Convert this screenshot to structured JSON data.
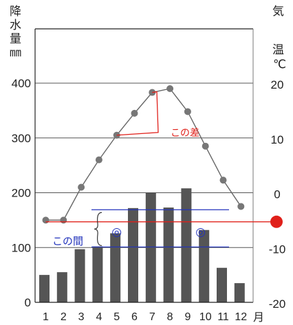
{
  "chart_data": {
    "type": "bar+line",
    "categories": [
      "1",
      "2",
      "3",
      "4",
      "5",
      "6",
      "7",
      "8",
      "9",
      "10",
      "11",
      "12"
    ],
    "month_suffix": "月",
    "precipitation": {
      "values": [
        50,
        55,
        97,
        102,
        126,
        172,
        200,
        173,
        208,
        132,
        63,
        35
      ]
    },
    "temperature": {
      "values": [
        -5,
        -5,
        1,
        6,
        10.5,
        14.5,
        18.3,
        19,
        14.8,
        8.5,
        2.3,
        -2.5
      ]
    },
    "left_axis": {
      "label_chars": [
        "降",
        "水",
        "量",
        "㎜"
      ],
      "ylim": [
        0,
        400
      ],
      "ticks": [
        "0",
        "100",
        "200",
        "300",
        "400"
      ]
    },
    "right_axis": {
      "label_chars": [
        "気",
        "温",
        "℃"
      ],
      "ylim": [
        -20,
        20
      ],
      "ticks": [
        "-20",
        "-10",
        "0",
        "10",
        "20"
      ]
    },
    "annotations": {
      "difference_label": "この差",
      "range_label": "この間",
      "marker_symbol": "◎",
      "band_upper": 169,
      "band_lower": 101,
      "reference_temperature": -5.3,
      "colors": {
        "red": "#e0201a",
        "blue": "#2233bb"
      }
    },
    "grid": true
  }
}
